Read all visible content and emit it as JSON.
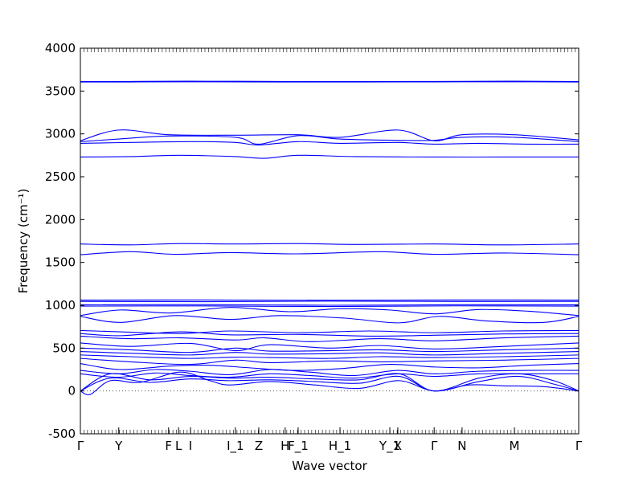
{
  "chart_data": {
    "type": "line",
    "title": "",
    "xlabel": "Wave vector",
    "ylabel": "Frequency (cm⁻¹)",
    "ylim": [
      -500,
      4000
    ],
    "y_ticks": [
      -500,
      0,
      500,
      1000,
      1500,
      2000,
      2500,
      3000,
      3500,
      4000
    ],
    "x_ticks": [
      "Γ",
      "Y",
      "F",
      "L",
      "I",
      "I_1",
      "Z",
      "H",
      "F_1",
      "H_1",
      "Y_1",
      "X",
      "Γ",
      "N",
      "M",
      "Γ"
    ],
    "x_tick_positions": [
      0,
      0.077,
      0.177,
      0.197,
      0.221,
      0.311,
      0.358,
      0.411,
      0.437,
      0.521,
      0.621,
      0.637,
      0.71,
      0.766,
      0.871,
      1.0
    ],
    "zero_line": true,
    "line_color": "#0000ff",
    "bands": [
      {
        "x": [
          0,
          0.1,
          0.22,
          0.4,
          0.55,
          0.71,
          0.87,
          1.0
        ],
        "y": [
          3610,
          3612,
          3615,
          3612,
          3610,
          3612,
          3615,
          3610
        ]
      },
      {
        "x": [
          0,
          0.1,
          0.22,
          0.4,
          0.55,
          0.71,
          0.87,
          1.0
        ],
        "y": [
          3605,
          3606,
          3608,
          3606,
          3605,
          3607,
          3608,
          3605
        ]
      },
      {
        "x": [
          0,
          0.077,
          0.177,
          0.311,
          0.437,
          0.521,
          0.637,
          0.71,
          0.766,
          0.871,
          1.0
        ],
        "y": [
          2920,
          3045,
          2990,
          2985,
          2990,
          2960,
          3045,
          2920,
          2990,
          2990,
          2930
        ]
      },
      {
        "x": [
          0,
          0.077,
          0.177,
          0.311,
          0.358,
          0.437,
          0.521,
          0.637,
          0.71,
          0.766,
          0.871,
          1.0
        ],
        "y": [
          2910,
          2940,
          2975,
          2960,
          2880,
          2980,
          2940,
          2925,
          2925,
          2960,
          2960,
          2910
        ]
      },
      {
        "x": [
          0,
          0.1,
          0.22,
          0.311,
          0.358,
          0.437,
          0.521,
          0.637,
          0.71,
          0.8,
          0.9,
          1.0
        ],
        "y": [
          2890,
          2900,
          2910,
          2900,
          2870,
          2910,
          2890,
          2900,
          2880,
          2890,
          2880,
          2880
        ]
      },
      {
        "x": [
          0,
          0.1,
          0.2,
          0.311,
          0.37,
          0.437,
          0.55,
          0.71,
          0.85,
          1.0
        ],
        "y": [
          2730,
          2735,
          2750,
          2735,
          2715,
          2750,
          2735,
          2730,
          2730,
          2730
        ]
      },
      {
        "x": [
          0,
          0.1,
          0.2,
          0.311,
          0.437,
          0.55,
          0.71,
          0.85,
          1.0
        ],
        "y": [
          1715,
          1705,
          1720,
          1715,
          1720,
          1710,
          1715,
          1705,
          1715
        ]
      },
      {
        "x": [
          0,
          0.1,
          0.19,
          0.3,
          0.437,
          0.6,
          0.71,
          0.85,
          1.0
        ],
        "y": [
          1590,
          1625,
          1595,
          1615,
          1600,
          1625,
          1595,
          1610,
          1590
        ]
      },
      {
        "x": [
          0,
          0.25,
          0.5,
          0.75,
          1.0
        ],
        "y": [
          1060,
          1062,
          1058,
          1062,
          1060
        ]
      },
      {
        "x": [
          0,
          0.25,
          0.5,
          0.75,
          1.0
        ],
        "y": [
          1045,
          1042,
          1048,
          1044,
          1045
        ]
      },
      {
        "x": [
          0,
          0.25,
          0.5,
          0.75,
          1.0
        ],
        "y": [
          1005,
          1008,
          1000,
          1006,
          1005
        ]
      },
      {
        "x": [
          0,
          0.25,
          0.5,
          0.75,
          1.0
        ],
        "y": [
          990,
          992,
          985,
          993,
          990
        ]
      },
      {
        "x": [
          0,
          0.08,
          0.18,
          0.3,
          0.42,
          0.52,
          0.62,
          0.71,
          0.8,
          0.9,
          1.0
        ],
        "y": [
          880,
          945,
          910,
          975,
          925,
          960,
          945,
          900,
          950,
          930,
          880
        ]
      },
      {
        "x": [
          0,
          0.08,
          0.19,
          0.3,
          0.4,
          0.53,
          0.64,
          0.72,
          0.82,
          0.93,
          1.0
        ],
        "y": [
          870,
          800,
          880,
          835,
          880,
          850,
          795,
          870,
          815,
          800,
          870
        ]
      },
      {
        "x": [
          0,
          0.08,
          0.2,
          0.3,
          0.44,
          0.58,
          0.71,
          0.85,
          1.0
        ],
        "y": [
          705,
          690,
          670,
          700,
          680,
          700,
          680,
          700,
          705
        ]
      },
      {
        "x": [
          0,
          0.08,
          0.2,
          0.3,
          0.44,
          0.58,
          0.71,
          0.85,
          1.0
        ],
        "y": [
          670,
          645,
          690,
          655,
          660,
          640,
          650,
          665,
          670
        ]
      },
      {
        "x": [
          0,
          0.1,
          0.2,
          0.311,
          0.37,
          0.46,
          0.6,
          0.71,
          0.85,
          1.0
        ],
        "y": [
          640,
          610,
          620,
          595,
          620,
          575,
          610,
          585,
          620,
          640
        ]
      },
      {
        "x": [
          0,
          0.1,
          0.22,
          0.311,
          0.38,
          0.5,
          0.6,
          0.71,
          0.85,
          1.0
        ],
        "y": [
          560,
          520,
          555,
          470,
          540,
          500,
          530,
          490,
          520,
          560
        ]
      },
      {
        "x": [
          0,
          0.1,
          0.22,
          0.311,
          0.38,
          0.5,
          0.6,
          0.71,
          0.85,
          1.0
        ],
        "y": [
          500,
          480,
          450,
          500,
          465,
          470,
          480,
          460,
          480,
          500
        ]
      },
      {
        "x": [
          0,
          0.1,
          0.22,
          0.311,
          0.38,
          0.5,
          0.6,
          0.71,
          0.85,
          1.0
        ],
        "y": [
          460,
          440,
          420,
          450,
          430,
          435,
          445,
          420,
          440,
          460
        ]
      },
      {
        "x": [
          0,
          0.1,
          0.22,
          0.311,
          0.38,
          0.5,
          0.6,
          0.71,
          0.85,
          1.0
        ],
        "y": [
          420,
          400,
          380,
          395,
          390,
          380,
          400,
          390,
          400,
          420
        ]
      },
      {
        "x": [
          0,
          0.1,
          0.22,
          0.311,
          0.38,
          0.5,
          0.6,
          0.71,
          0.85,
          1.0
        ],
        "y": [
          380,
          340,
          310,
          360,
          330,
          350,
          340,
          350,
          360,
          380
        ]
      },
      {
        "x": [
          0,
          0.08,
          0.18,
          0.26,
          0.34,
          0.43,
          0.52,
          0.62,
          0.71,
          0.8,
          0.9,
          1.0
        ],
        "y": [
          320,
          250,
          290,
          300,
          270,
          240,
          260,
          310,
          280,
          270,
          300,
          320
        ]
      },
      {
        "x": [
          0,
          0.077,
          0.15,
          0.22,
          0.3,
          0.38,
          0.46,
          0.55,
          0.637,
          0.71,
          0.8,
          0.9,
          1.0
        ],
        "y": [
          240,
          200,
          250,
          230,
          190,
          250,
          220,
          180,
          240,
          200,
          230,
          240,
          240
        ]
      },
      {
        "x": [
          0,
          0.077,
          0.15,
          0.22,
          0.3,
          0.38,
          0.46,
          0.55,
          0.637,
          0.71,
          0.8,
          0.9,
          1.0
        ],
        "y": [
          200,
          160,
          210,
          180,
          160,
          200,
          180,
          150,
          200,
          170,
          200,
          200,
          200
        ]
      },
      {
        "x": [
          0,
          0.06,
          0.14,
          0.22,
          0.3,
          0.38,
          0.47,
          0.56,
          0.64,
          0.71,
          0.8,
          0.88,
          0.95,
          1.0
        ],
        "y": [
          0,
          200,
          130,
          170,
          150,
          160,
          140,
          130,
          200,
          0,
          150,
          200,
          120,
          0
        ]
      },
      {
        "x": [
          0,
          0.06,
          0.14,
          0.22,
          0.3,
          0.38,
          0.47,
          0.56,
          0.64,
          0.71,
          0.8,
          0.88,
          0.95,
          1.0
        ],
        "y": [
          0,
          150,
          100,
          140,
          120,
          130,
          110,
          90,
          170,
          0,
          110,
          170,
          80,
          0
        ]
      },
      {
        "x": [
          0,
          0.02,
          0.06,
          0.12,
          0.2,
          0.26,
          0.3,
          0.38,
          0.47,
          0.56,
          0.64,
          0.71,
          0.78,
          0.85,
          0.93,
          1.0
        ],
        "y": [
          0,
          -40,
          120,
          100,
          220,
          120,
          70,
          110,
          70,
          30,
          120,
          0,
          70,
          60,
          50,
          0
        ]
      }
    ]
  }
}
